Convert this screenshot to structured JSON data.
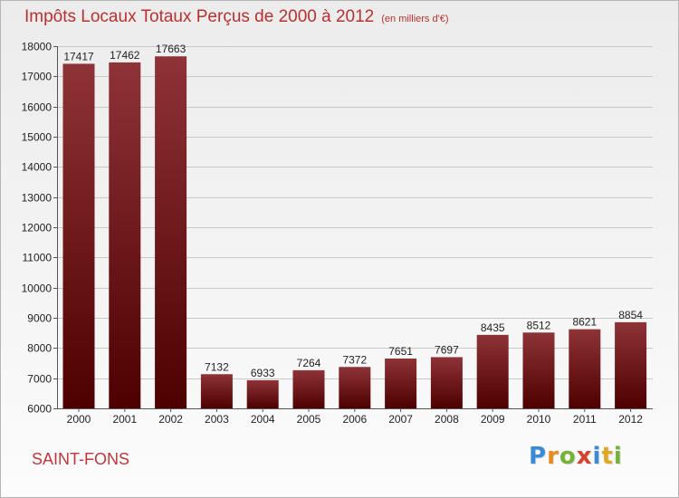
{
  "title": "Impôts Locaux Totaux Perçus de 2000 à 2012",
  "unit_note": "(en milliers d'€)",
  "commune": "SAINT-FONS",
  "brand": {
    "letters": [
      "P",
      "r",
      "o",
      "x",
      "i",
      "t",
      "i"
    ],
    "colors": [
      "#3a8ad8",
      "#e98a1d",
      "#74b33a",
      "#d4412d",
      "#3a8ad8",
      "#e0a722",
      "#74b33a"
    ]
  },
  "colors": {
    "bar_top": "#8e3338",
    "bar_bottom": "#4e0000",
    "axis_text": "#222222",
    "grid": "#c8c8c8"
  },
  "chart_data": {
    "type": "bar",
    "categories": [
      "2000",
      "2001",
      "2002",
      "2003",
      "2004",
      "2005",
      "2006",
      "2007",
      "2008",
      "2009",
      "2010",
      "2011",
      "2012"
    ],
    "values": [
      17417,
      17462,
      17663,
      7132,
      6933,
      7264,
      7372,
      7651,
      7697,
      8435,
      8512,
      8621,
      8854
    ],
    "ylim": [
      6000,
      18000
    ],
    "yticks": [
      6000,
      7000,
      8000,
      9000,
      10000,
      11000,
      12000,
      13000,
      14000,
      15000,
      16000,
      17000,
      18000
    ],
    "grid": true,
    "data_labels": true
  }
}
